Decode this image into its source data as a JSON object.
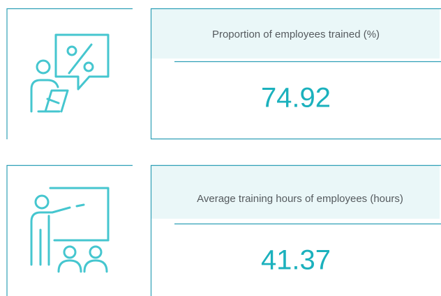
{
  "cards": [
    {
      "label": "Proportion of employees trained (%)",
      "value": 74.92
    },
    {
      "label": "Average training hours of employees (hours)",
      "value": 41.37
    }
  ]
}
